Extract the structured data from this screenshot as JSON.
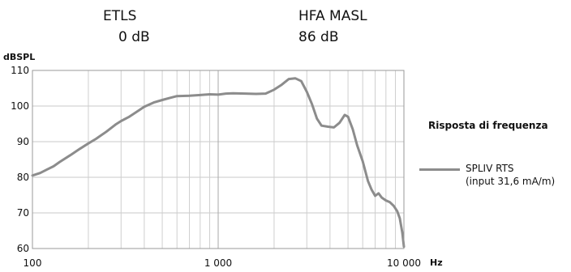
{
  "header": {
    "etls_label": "ETLS",
    "etls_value": "0 dB",
    "hfa_label": "HFA MASL",
    "hfa_value": "86 dB"
  },
  "chart_data": {
    "type": "line",
    "ylabel": "dBSPL",
    "xlabel": "Hz",
    "x_scale": "log",
    "xlim": [
      100,
      10000
    ],
    "ylim": [
      60,
      110
    ],
    "grid": true,
    "x_ticks": [
      {
        "value": 100,
        "label": "100"
      },
      {
        "value": 1000,
        "label": "1 000"
      },
      {
        "value": 10000,
        "label": "10 000"
      }
    ],
    "y_ticks": [
      {
        "value": 60,
        "label": "60"
      },
      {
        "value": 70,
        "label": "70"
      },
      {
        "value": 80,
        "label": "80"
      },
      {
        "value": 90,
        "label": "90"
      },
      {
        "value": 100,
        "label": "100"
      },
      {
        "value": 110,
        "label": "110"
      }
    ],
    "legend_title": "Risposta di frequenza",
    "legend_position": "right",
    "line_color": "#8c8c8c",
    "series": [
      {
        "name": "SPLIV RTS",
        "name_line2": "(input 31,6 mA/m)",
        "points": [
          [
            100,
            80.5
          ],
          [
            110,
            81.2
          ],
          [
            120,
            82.2
          ],
          [
            130,
            83.1
          ],
          [
            140,
            84.3
          ],
          [
            160,
            86.2
          ],
          [
            180,
            88.0
          ],
          [
            200,
            89.5
          ],
          [
            220,
            90.8
          ],
          [
            250,
            92.8
          ],
          [
            280,
            94.8
          ],
          [
            300,
            95.8
          ],
          [
            330,
            96.9
          ],
          [
            360,
            98.2
          ],
          [
            400,
            99.8
          ],
          [
            450,
            101.0
          ],
          [
            500,
            101.7
          ],
          [
            550,
            102.3
          ],
          [
            600,
            102.8
          ],
          [
            700,
            102.9
          ],
          [
            800,
            103.1
          ],
          [
            900,
            103.3
          ],
          [
            1000,
            103.2
          ],
          [
            1100,
            103.5
          ],
          [
            1200,
            103.6
          ],
          [
            1400,
            103.5
          ],
          [
            1600,
            103.4
          ],
          [
            1800,
            103.5
          ],
          [
            2000,
            104.6
          ],
          [
            2200,
            106.0
          ],
          [
            2400,
            107.6
          ],
          [
            2600,
            107.8
          ],
          [
            2800,
            107.0
          ],
          [
            3000,
            104.0
          ],
          [
            3200,
            100.5
          ],
          [
            3400,
            96.5
          ],
          [
            3600,
            94.5
          ],
          [
            3900,
            94.2
          ],
          [
            4200,
            94.0
          ],
          [
            4500,
            95.3
          ],
          [
            4800,
            97.5
          ],
          [
            5000,
            97.0
          ],
          [
            5300,
            93.5
          ],
          [
            5600,
            89.0
          ],
          [
            6000,
            84.5
          ],
          [
            6400,
            79.0
          ],
          [
            6700,
            76.5
          ],
          [
            7000,
            74.8
          ],
          [
            7300,
            75.5
          ],
          [
            7600,
            74.3
          ],
          [
            8000,
            73.5
          ],
          [
            8400,
            73.0
          ],
          [
            8800,
            72.0
          ],
          [
            9200,
            70.5
          ],
          [
            9500,
            68.5
          ],
          [
            9800,
            64.5
          ],
          [
            10000,
            60.5
          ]
        ]
      }
    ]
  }
}
